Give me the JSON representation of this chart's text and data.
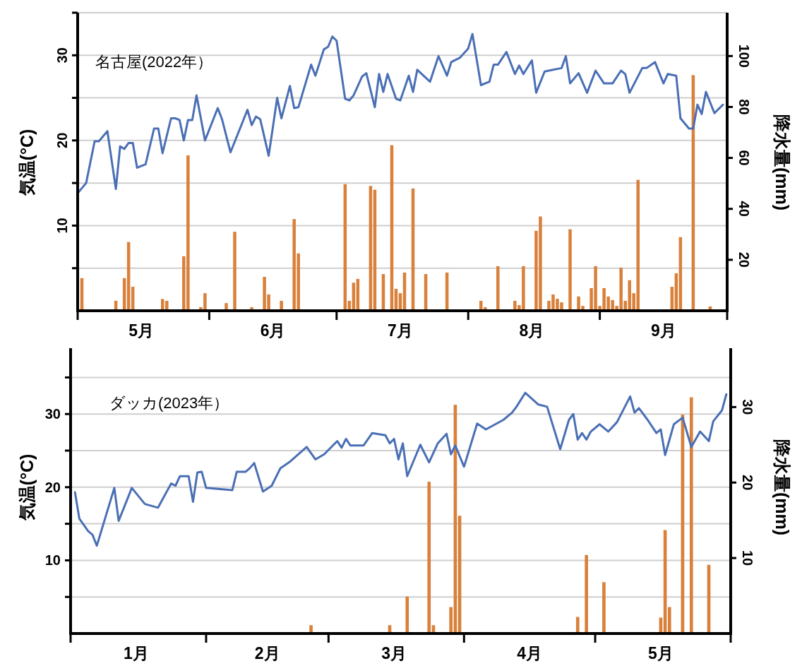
{
  "chart_data": [
    {
      "type": "line",
      "title": "名古屋(2022年）",
      "ylabel": "気温(°C)",
      "y2label": "降水量(mm)",
      "grid": "y",
      "xlim": [
        "2022-05-01",
        "2022-10-01"
      ],
      "xticks": [
        {
          "value": "2022-05-01",
          "label": null
        },
        {
          "value": "2022-05-16",
          "label": "5月"
        },
        {
          "value": "2022-06-01",
          "label": null
        },
        {
          "value": "2022-06-16",
          "label": "6月"
        },
        {
          "value": "2022-07-01",
          "label": null
        },
        {
          "value": "2022-07-16",
          "label": "7月"
        },
        {
          "value": "2022-08-01",
          "label": null
        },
        {
          "value": "2022-08-16",
          "label": "8月"
        },
        {
          "value": "2022-09-01",
          "label": null
        },
        {
          "value": "2022-09-16",
          "label": "9月"
        },
        {
          "value": "2022-10-01",
          "label": null
        }
      ],
      "ylim": [
        0,
        35
      ],
      "yticks": [
        {
          "value": 5,
          "label": null
        },
        10,
        {
          "value": 15,
          "label": null
        },
        20,
        {
          "value": 25,
          "label": null
        },
        30,
        {
          "value": 35,
          "label": null
        }
      ],
      "y2lim": [
        0,
        117
      ],
      "y2ticks": [
        20,
        40,
        60,
        80,
        100
      ],
      "series": [
        {
          "type": "bar",
          "axis": "y2",
          "color": "#d9803a",
          "x": [
            "2022-05-02",
            "2022-05-10",
            "2022-05-12",
            "2022-05-13",
            "2022-05-14",
            "2022-05-21",
            "2022-05-22",
            "2022-05-26",
            "2022-05-27",
            "2022-05-30",
            "2022-05-31",
            "2022-06-05",
            "2022-06-07",
            "2022-06-11",
            "2022-06-14",
            "2022-06-15",
            "2022-06-18",
            "2022-06-21",
            "2022-06-22",
            "2022-07-03",
            "2022-07-04",
            "2022-07-05",
            "2022-07-06",
            "2022-07-09",
            "2022-07-10",
            "2022-07-12",
            "2022-07-14",
            "2022-07-15",
            "2022-07-16",
            "2022-07-17",
            "2022-07-19",
            "2022-07-22",
            "2022-07-27",
            "2022-08-04",
            "2022-08-05",
            "2022-08-08",
            "2022-08-12",
            "2022-08-13",
            "2022-08-14",
            "2022-08-17",
            "2022-08-18",
            "2022-08-20",
            "2022-08-21",
            "2022-08-22",
            "2022-08-23",
            "2022-08-25",
            "2022-08-27",
            "2022-08-28",
            "2022-08-30",
            "2022-08-31",
            "2022-09-01",
            "2022-09-02",
            "2022-09-03",
            "2022-09-04",
            "2022-09-05",
            "2022-09-06",
            "2022-09-07",
            "2022-09-08",
            "2022-09-09",
            "2022-09-10",
            "2022-09-18",
            "2022-09-19",
            "2022-09-20",
            "2022-09-23",
            "2022-09-27"
          ],
          "values": [
            12.8,
            3.9,
            12.8,
            27,
            9.4,
            4.6,
            3.9,
            21.4,
            61,
            1.4,
            6.9,
            3,
            31,
            1.4,
            13.3,
            6.4,
            3.9,
            36,
            22.5,
            49.7,
            3.9,
            11,
            12.5,
            49,
            47.5,
            14.4,
            65,
            8.6,
            6.9,
            15,
            48,
            14.4,
            15,
            3.9,
            1.4,
            17.5,
            3.9,
            2.2,
            17.5,
            31.4,
            37,
            3.9,
            6.4,
            4.7,
            3.3,
            32,
            5.6,
            1.9,
            8.9,
            17.5,
            1.9,
            8.9,
            5.6,
            4.2,
            1.9,
            16.9,
            3.9,
            12,
            6.9,
            51.4,
            9.4,
            14.7,
            28.9,
            92.5,
            1.7
          ]
        },
        {
          "color": "#4a6fb5",
          "x": [
            "2022-05-01",
            "2022-05-03",
            "2022-05-05",
            "2022-05-06",
            "2022-05-08",
            "2022-05-10",
            "2022-05-11",
            "2022-05-12",
            "2022-05-13",
            "2022-05-14",
            "2022-05-15",
            "2022-05-17",
            "2022-05-19",
            "2022-05-20",
            "2022-05-21",
            "2022-05-23",
            "2022-05-24",
            "2022-05-25",
            "2022-05-26",
            "2022-05-27",
            "2022-05-28",
            "2022-05-29",
            "2022-05-31",
            "2022-06-03",
            "2022-06-04",
            "2022-06-06",
            "2022-06-10",
            "2022-06-11",
            "2022-06-12",
            "2022-06-13",
            "2022-06-15",
            "2022-06-17",
            "2022-06-18",
            "2022-06-20",
            "2022-06-21",
            "2022-06-22",
            "2022-06-25",
            "2022-06-26",
            "2022-06-28",
            "2022-06-29",
            "2022-06-30",
            "2022-07-01",
            "2022-07-03",
            "2022-07-04",
            "2022-07-05",
            "2022-07-07",
            "2022-07-08",
            "2022-07-10",
            "2022-07-11",
            "2022-07-12",
            "2022-07-13",
            "2022-07-15",
            "2022-07-16",
            "2022-07-18",
            "2022-07-19",
            "2022-07-20",
            "2022-07-23",
            "2022-07-25",
            "2022-07-27",
            "2022-07-28",
            "2022-07-30",
            "2022-08-01",
            "2022-08-02",
            "2022-08-04",
            "2022-08-06",
            "2022-08-07",
            "2022-08-08",
            "2022-08-10",
            "2022-08-12",
            "2022-08-13",
            "2022-08-14",
            "2022-08-16",
            "2022-08-17",
            "2022-08-19",
            "2022-08-21",
            "2022-08-23",
            "2022-08-24",
            "2022-08-25",
            "2022-08-27",
            "2022-08-29",
            "2022-08-31",
            "2022-09-02",
            "2022-09-04",
            "2022-09-06",
            "2022-09-07",
            "2022-09-08",
            "2022-09-11",
            "2022-09-12",
            "2022-09-14",
            "2022-09-16",
            "2022-09-17",
            "2022-09-19",
            "2022-09-20",
            "2022-09-22",
            "2022-09-23",
            "2022-09-24",
            "2022-09-25",
            "2022-09-26",
            "2022-09-28",
            "2022-09-30"
          ],
          "values": [
            13.8,
            15.0,
            19.9,
            19.9,
            21.1,
            14.3,
            19.3,
            19.0,
            19.7,
            19.7,
            16.8,
            17.2,
            21.4,
            21.4,
            18.5,
            22.6,
            22.6,
            22.4,
            20.0,
            22.4,
            22.4,
            25.3,
            20.0,
            23.8,
            22.5,
            18.6,
            23.6,
            21.8,
            22.8,
            22.5,
            18.2,
            25.0,
            22.6,
            26.4,
            23.8,
            23.9,
            28.9,
            27.6,
            30.7,
            31.0,
            32.2,
            31.7,
            24.9,
            24.7,
            25.3,
            27.5,
            27.9,
            23.9,
            27.8,
            25.7,
            27.8,
            24.9,
            24.7,
            27.6,
            25.7,
            28.3,
            26.9,
            29.9,
            27.6,
            29.2,
            29.7,
            30.8,
            32.5,
            26.5,
            26.9,
            28.9,
            28.9,
            30.4,
            27.8,
            28.8,
            27.8,
            29.4,
            25.6,
            28.1,
            28.3,
            28.5,
            29.9,
            26.7,
            27.9,
            25.6,
            28.2,
            26.7,
            26.7,
            28.2,
            27.8,
            25.6,
            28.5,
            28.5,
            29.2,
            26.7,
            27.8,
            27.6,
            22.6,
            21.4,
            21.4,
            24.2,
            23.1,
            25.7,
            23.2,
            24.2
          ]
        }
      ]
    },
    {
      "type": "line",
      "title": "ダッカ(2023年）",
      "ylabel": "気温(°C)",
      "y2label": "降水量(mm)",
      "grid": "y",
      "xlim": [
        "2023-01-01",
        "2023-06-01"
      ],
      "xticks": [
        {
          "value": "2023-01-01",
          "label": null
        },
        {
          "value": "2023-01-16",
          "label": "1月"
        },
        {
          "value": "2023-02-01",
          "label": null
        },
        {
          "value": "2023-02-15",
          "label": "2月"
        },
        {
          "value": "2023-03-01",
          "label": null
        },
        {
          "value": "2023-03-16",
          "label": "3月"
        },
        {
          "value": "2023-04-01",
          "label": null
        },
        {
          "value": "2023-04-16",
          "label": "4月"
        },
        {
          "value": "2023-05-01",
          "label": null
        },
        {
          "value": "2023-05-16",
          "label": "5月"
        },
        {
          "value": "2023-06-01",
          "label": null
        }
      ],
      "ylim": [
        0,
        39
      ],
      "yticks": [
        {
          "value": 5,
          "label": null
        },
        10,
        {
          "value": 15,
          "label": null
        },
        20,
        {
          "value": 25,
          "label": null
        },
        30,
        {
          "value": 35,
          "label": null
        }
      ],
      "y2lim": [
        0,
        37.8
      ],
      "y2ticks": [
        10,
        20,
        30
      ],
      "series": [
        {
          "type": "bar",
          "axis": "y2",
          "color": "#d9803a",
          "x": [
            "2023-02-25",
            "2023-03-15",
            "2023-03-19",
            "2023-03-24",
            "2023-03-25",
            "2023-03-29",
            "2023-03-30",
            "2023-03-31",
            "2023-04-27",
            "2023-04-29",
            "2023-05-03",
            "2023-05-16",
            "2023-05-17",
            "2023-05-18",
            "2023-05-21",
            "2023-05-23",
            "2023-05-27"
          ],
          "values": [
            1.1,
            1.1,
            4.9,
            20.1,
            1.1,
            3.5,
            30.3,
            15.6,
            2.2,
            10.4,
            6.8,
            2.1,
            13.7,
            3.5,
            29,
            31.3,
            9.1
          ]
        },
        {
          "color": "#4a6fb5",
          "x": [
            "2023-01-02",
            "2023-01-03",
            "2023-01-05",
            "2023-01-06",
            "2023-01-07",
            "2023-01-11",
            "2023-01-12",
            "2023-01-15",
            "2023-01-18",
            "2023-01-21",
            "2023-01-24",
            "2023-01-25",
            "2023-01-26",
            "2023-01-28",
            "2023-01-29",
            "2023-01-30",
            "2023-01-31",
            "2023-02-01",
            "2023-02-07",
            "2023-02-08",
            "2023-02-10",
            "2023-02-11",
            "2023-02-12",
            "2023-02-14",
            "2023-02-16",
            "2023-02-18",
            "2023-02-20",
            "2023-02-24",
            "2023-02-26",
            "2023-02-28",
            "2023-03-03",
            "2023-03-04",
            "2023-03-05",
            "2023-03-06",
            "2023-03-09",
            "2023-03-11",
            "2023-03-14",
            "2023-03-15",
            "2023-03-16",
            "2023-03-17",
            "2023-03-18",
            "2023-03-19",
            "2023-03-22",
            "2023-03-24",
            "2023-03-26",
            "2023-03-28",
            "2023-03-29",
            "2023-03-30",
            "2023-04-01",
            "2023-04-04",
            "2023-04-06",
            "2023-04-10",
            "2023-04-12",
            "2023-04-13",
            "2023-04-15",
            "2023-04-18",
            "2023-04-20",
            "2023-04-23",
            "2023-04-25",
            "2023-04-26",
            "2023-04-27",
            "2023-04-28",
            "2023-04-29",
            "2023-04-30",
            "2023-05-02",
            "2023-05-04",
            "2023-05-06",
            "2023-05-09",
            "2023-05-10",
            "2023-05-11",
            "2023-05-13",
            "2023-05-15",
            "2023-05-16",
            "2023-05-17",
            "2023-05-19",
            "2023-05-21",
            "2023-05-23",
            "2023-05-25",
            "2023-05-27",
            "2023-05-28",
            "2023-05-30",
            "2023-05-31"
          ],
          "values": [
            19.3,
            15.7,
            14.0,
            13.5,
            12.0,
            19.9,
            15.4,
            19.9,
            17.7,
            17.2,
            20.5,
            20.2,
            21.5,
            21.5,
            18.0,
            22.0,
            22.1,
            19.9,
            19.6,
            22.1,
            22.1,
            22.6,
            23.3,
            19.4,
            20.2,
            22.6,
            23.4,
            25.5,
            23.8,
            24.5,
            26.3,
            25.4,
            26.6,
            25.7,
            25.7,
            27.4,
            27.1,
            26.0,
            26.6,
            23.8,
            26.0,
            21.5,
            25.8,
            23.4,
            26.0,
            27.3,
            24.5,
            25.7,
            22.8,
            28.7,
            27.9,
            29.2,
            30.2,
            31.0,
            32.9,
            31.3,
            31.0,
            25.2,
            29.2,
            30.0,
            26.5,
            27.4,
            26.5,
            27.6,
            28.6,
            27.6,
            28.9,
            32.4,
            30.2,
            30.8,
            29.2,
            27.4,
            27.9,
            24.4,
            28.6,
            29.5,
            25.5,
            27.6,
            26.3,
            29.0,
            30.5,
            32.7
          ]
        }
      ]
    }
  ]
}
